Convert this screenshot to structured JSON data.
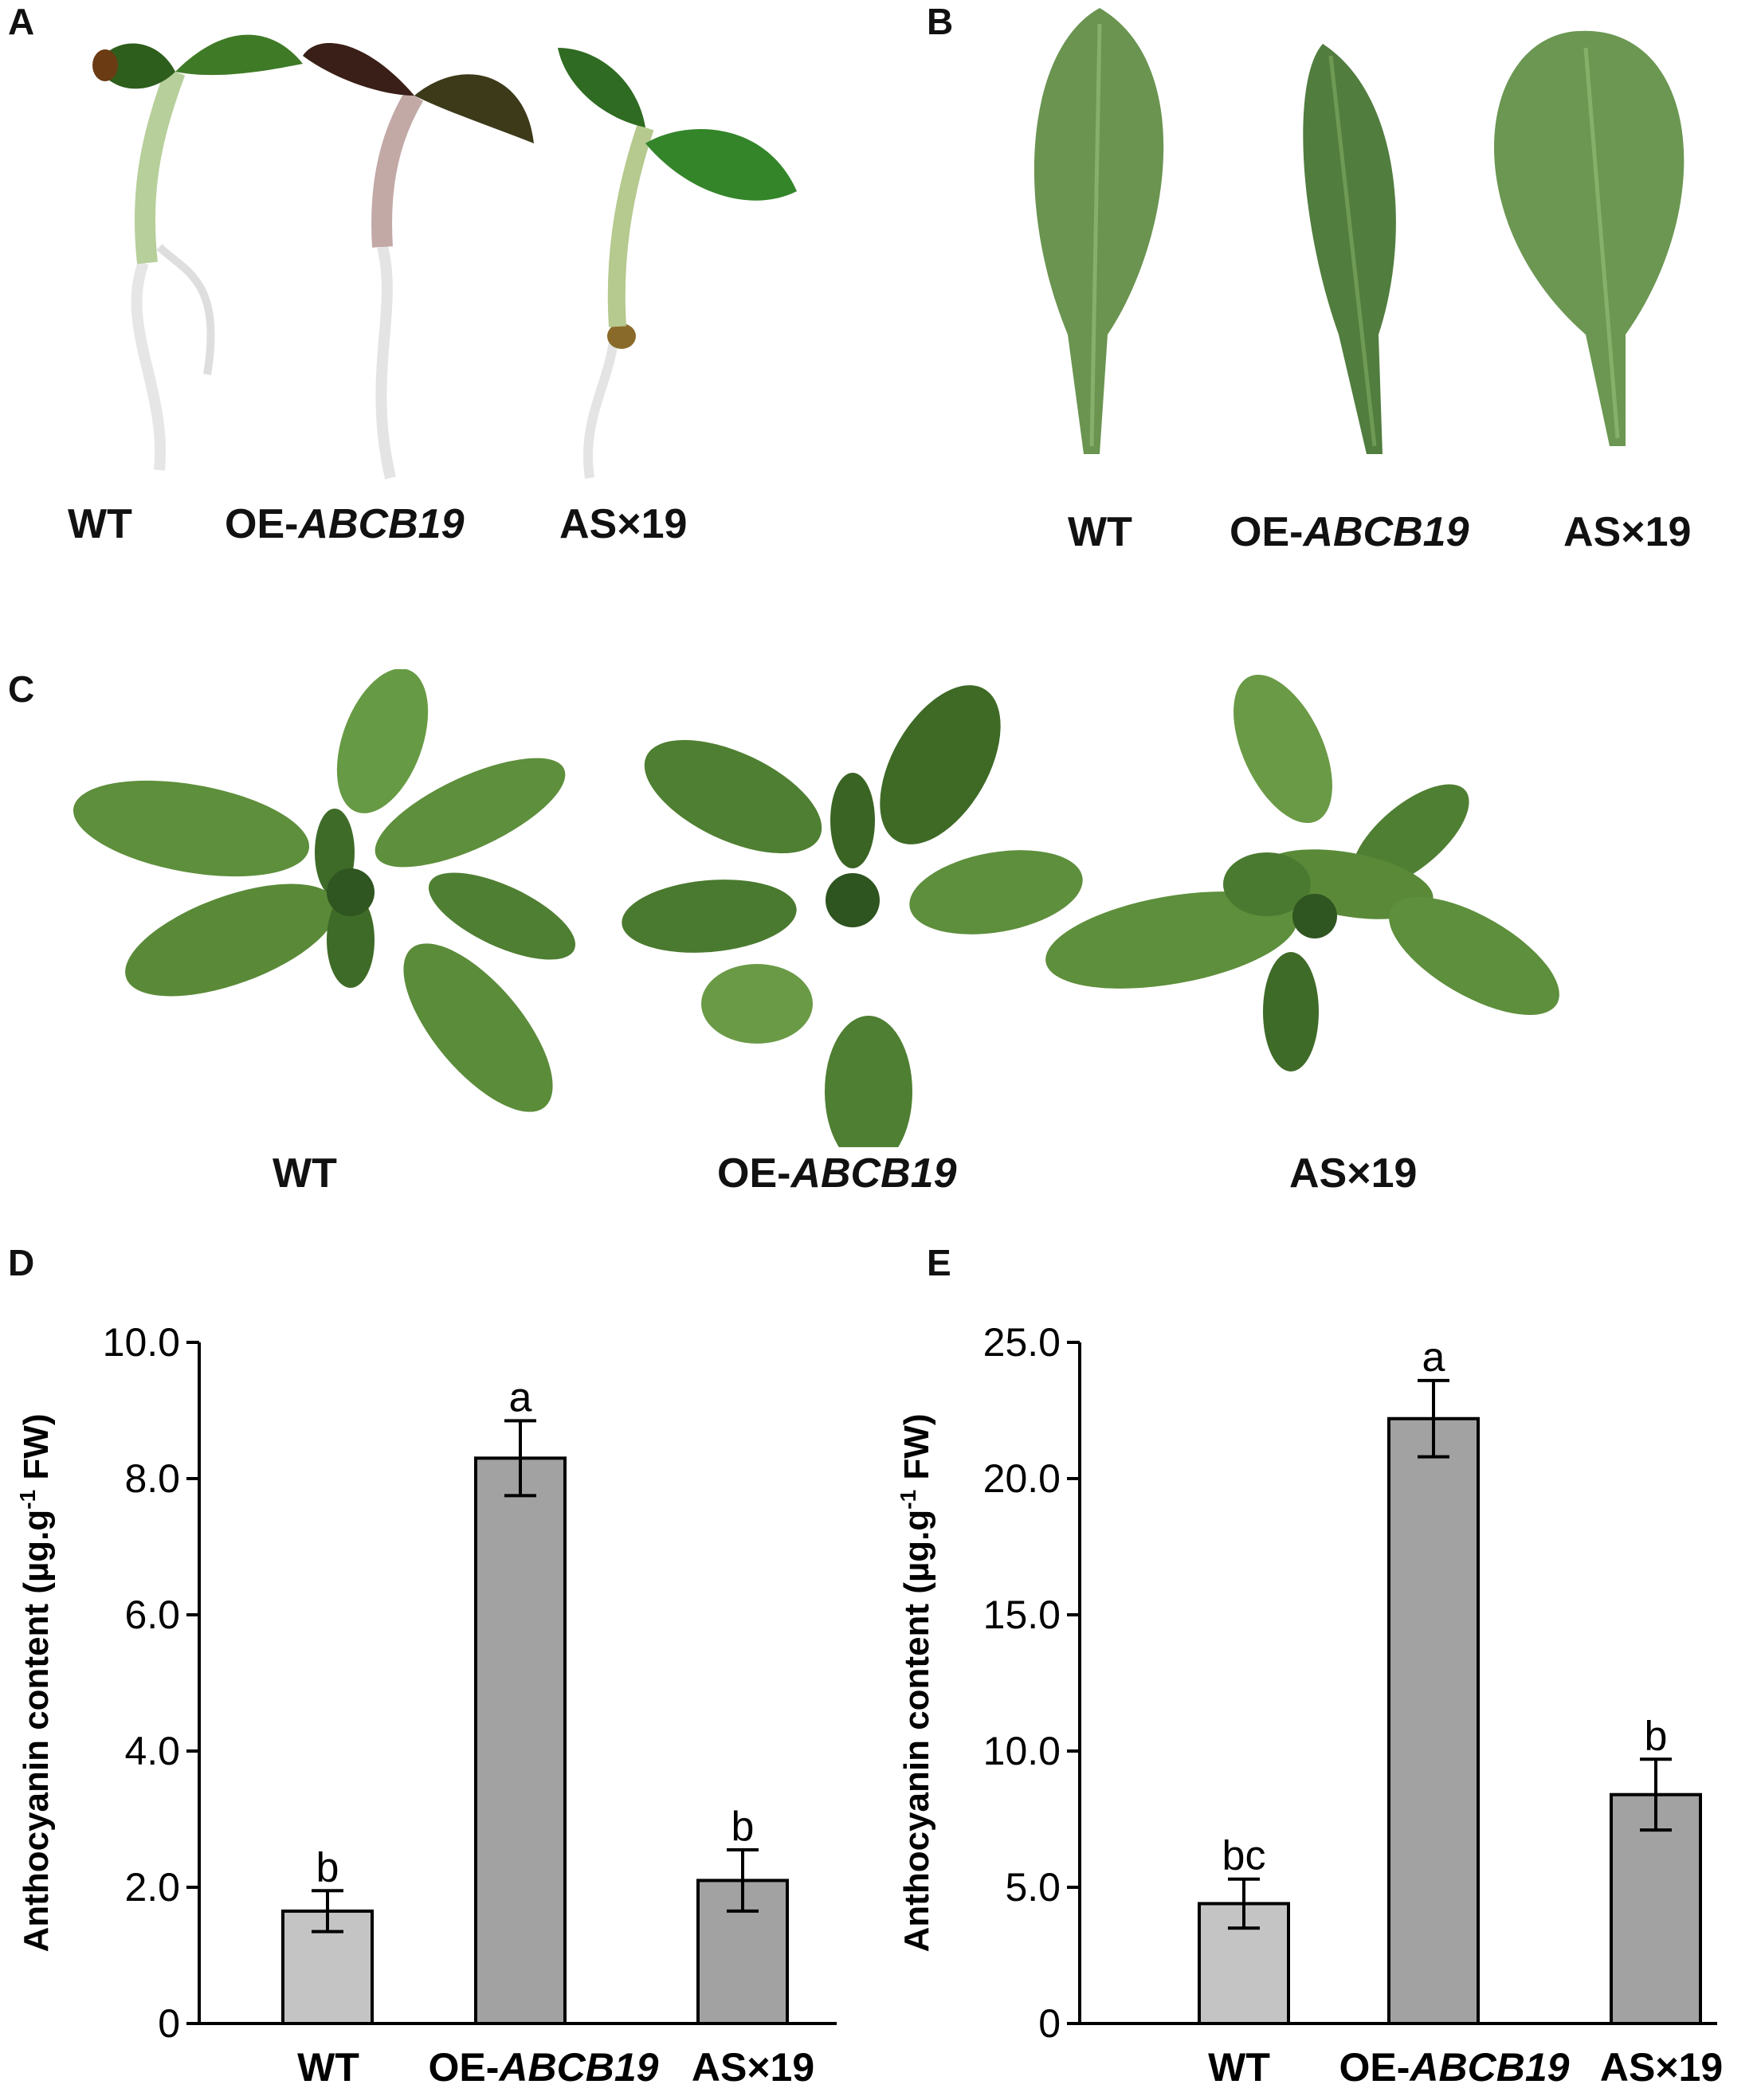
{
  "panels": {
    "A": {
      "letter": "A",
      "labels": [
        {
          "prefix": "WT",
          "italic": ""
        },
        {
          "prefix": "OE-",
          "italic": "ABCB19"
        },
        {
          "prefix": "AS×19",
          "italic": ""
        }
      ]
    },
    "B": {
      "letter": "B",
      "labels": [
        {
          "prefix": "WT",
          "italic": ""
        },
        {
          "prefix": "OE-",
          "italic": "ABCB19"
        },
        {
          "prefix": "AS×19",
          "italic": ""
        }
      ]
    },
    "C": {
      "letter": "C",
      "labels": [
        {
          "prefix": "WT",
          "italic": ""
        },
        {
          "prefix": "OE-",
          "italic": "ABCB19"
        },
        {
          "prefix": "AS×19",
          "italic": ""
        }
      ]
    },
    "D": {
      "letter": "D"
    },
    "E": {
      "letter": "E"
    }
  },
  "colors": {
    "leaf": "#5e8f3c",
    "leaf_dark": "#3f6b28",
    "bar_light": "#c4c4c4",
    "bar_dark": "#a2a2a2"
  },
  "chart_data": [
    {
      "panel": "D",
      "type": "bar",
      "categories": [
        {
          "prefix": "WT",
          "italic": ""
        },
        {
          "prefix": "OE-",
          "italic": "ABCB19"
        },
        {
          "prefix": "AS×19",
          "italic": ""
        }
      ],
      "values": [
        1.65,
        8.3,
        2.1
      ],
      "errors": [
        0.3,
        0.55,
        0.45
      ],
      "significance": [
        "b",
        "a",
        "b"
      ],
      "ylabel": "Anthocyanin content (µg.g",
      "ylabel_sup": "-1",
      "ylabel_end": " FW)",
      "ylim": [
        0,
        10
      ],
      "yticks": [
        "0",
        "2.0",
        "4.0",
        "6.0",
        "8.0",
        "10.0"
      ],
      "ytick_values": [
        0,
        2,
        4,
        6,
        8,
        10
      ],
      "grid": false
    },
    {
      "panel": "E",
      "type": "bar",
      "categories": [
        {
          "prefix": "WT",
          "italic": ""
        },
        {
          "prefix": "OE-",
          "italic": "ABCB19"
        },
        {
          "prefix": "AS×19",
          "italic": ""
        }
      ],
      "values": [
        4.4,
        22.2,
        8.4
      ],
      "errors": [
        0.9,
        1.4,
        1.3
      ],
      "significance": [
        "bc",
        "a",
        "b"
      ],
      "ylabel": "Anthocyanin content (µg.g",
      "ylabel_sup": "-1",
      "ylabel_end": " FW)",
      "ylim": [
        0,
        25
      ],
      "yticks": [
        "0",
        "5.0",
        "10.0",
        "15.0",
        "20.0",
        "25.0"
      ],
      "ytick_values": [
        0,
        5,
        10,
        15,
        20,
        25
      ],
      "grid": false
    }
  ]
}
